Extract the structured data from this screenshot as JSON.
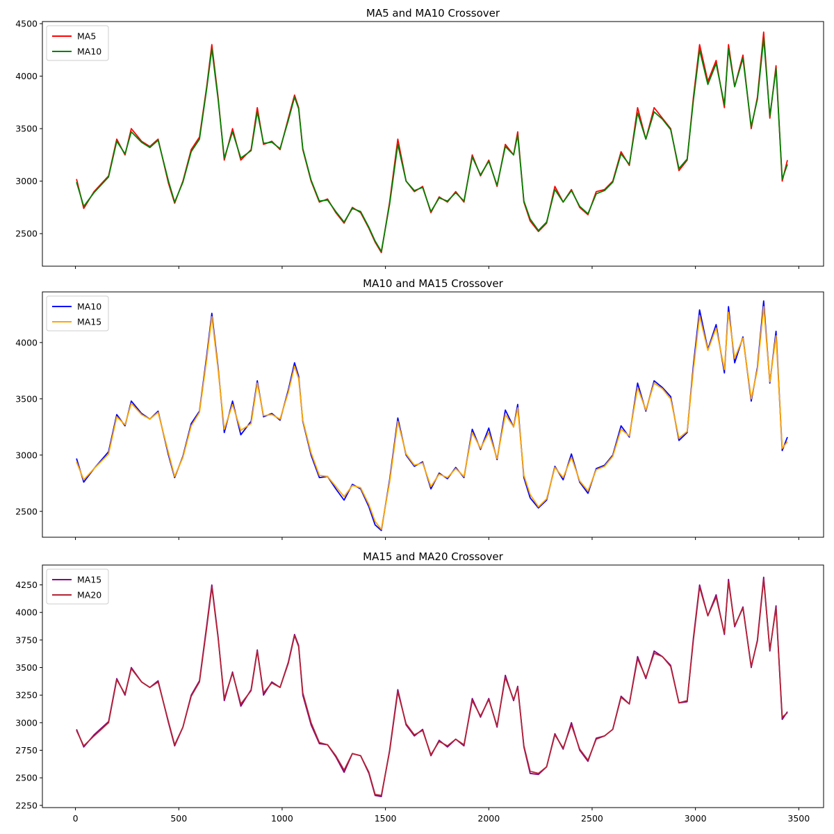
{
  "chart_data": [
    {
      "type": "line",
      "title": "MA5 and MA10 Crossover",
      "xlim": [
        -160,
        3620
      ],
      "ylim": [
        2190,
        4520
      ],
      "xticks": [
        0,
        500,
        1000,
        1500,
        2000,
        2500,
        3000,
        3500
      ],
      "xtick_labels_visible": false,
      "yticks": [
        2500,
        3000,
        3500,
        4000,
        4500
      ],
      "legend_position": "upper left",
      "x": [
        5,
        40,
        90,
        160,
        200,
        240,
        270,
        320,
        360,
        400,
        450,
        480,
        520,
        560,
        600,
        635,
        660,
        690,
        720,
        760,
        800,
        850,
        880,
        910,
        950,
        990,
        1030,
        1060,
        1080,
        1100,
        1140,
        1180,
        1220,
        1260,
        1300,
        1340,
        1380,
        1420,
        1450,
        1480,
        1520,
        1560,
        1600,
        1640,
        1680,
        1720,
        1760,
        1800,
        1840,
        1880,
        1920,
        1960,
        2000,
        2040,
        2080,
        2120,
        2140,
        2170,
        2200,
        2240,
        2280,
        2320,
        2360,
        2400,
        2440,
        2480,
        2520,
        2560,
        2600,
        2640,
        2680,
        2720,
        2760,
        2800,
        2840,
        2880,
        2920,
        2960,
        2990,
        3020,
        3060,
        3100,
        3140,
        3160,
        3190,
        3230,
        3270,
        3300,
        3330,
        3360,
        3390,
        3420,
        3445
      ],
      "series": [
        {
          "name": "MA5",
          "color": "#ff0000",
          "values": [
            3020,
            2740,
            2900,
            3050,
            3400,
            3250,
            3500,
            3380,
            3330,
            3400,
            2980,
            2790,
            3000,
            3300,
            3420,
            3900,
            4300,
            3800,
            3200,
            3500,
            3200,
            3300,
            3700,
            3350,
            3380,
            3300,
            3600,
            3820,
            3700,
            3300,
            3000,
            2800,
            2830,
            2700,
            2600,
            2750,
            2700,
            2550,
            2420,
            2320,
            2800,
            3400,
            3000,
            2900,
            2950,
            2700,
            2850,
            2800,
            2900,
            2800,
            3250,
            3050,
            3200,
            2950,
            3350,
            3250,
            3470,
            2800,
            2620,
            2520,
            2600,
            2950,
            2800,
            2920,
            2750,
            2680,
            2900,
            2920,
            3000,
            3280,
            3150,
            3700,
            3400,
            3700,
            3600,
            3500,
            3100,
            3200,
            3800,
            4300,
            3950,
            4150,
            3700,
            4300,
            3900,
            4200,
            3500,
            3800,
            4420,
            3600,
            4100,
            3000,
            3200
          ]
        },
        {
          "name": "MA10",
          "color": "#008000",
          "values": [
            2990,
            2760,
            2890,
            3040,
            3380,
            3260,
            3470,
            3370,
            3320,
            3390,
            3000,
            2800,
            2990,
            3280,
            3400,
            3880,
            4260,
            3780,
            3220,
            3470,
            3220,
            3290,
            3660,
            3360,
            3370,
            3310,
            3580,
            3800,
            3690,
            3310,
            3010,
            2810,
            2820,
            2710,
            2610,
            2740,
            2710,
            2560,
            2430,
            2330,
            2780,
            3350,
            3000,
            2910,
            2940,
            2710,
            2840,
            2810,
            2890,
            2810,
            3230,
            3060,
            3190,
            2960,
            3330,
            3250,
            3440,
            2810,
            2640,
            2530,
            2610,
            2920,
            2800,
            2910,
            2760,
            2690,
            2880,
            2910,
            2990,
            3260,
            3160,
            3650,
            3400,
            3660,
            3590,
            3490,
            3120,
            3210,
            3770,
            4250,
            3920,
            4120,
            3730,
            4260,
            3900,
            4170,
            3520,
            3780,
            4360,
            3620,
            4070,
            3020,
            3160
          ]
        }
      ]
    },
    {
      "type": "line",
      "title": "MA10 and MA15 Crossover",
      "xlim": [
        -160,
        3620
      ],
      "ylim": [
        2270,
        4450
      ],
      "xticks": [
        0,
        500,
        1000,
        1500,
        2000,
        2500,
        3000,
        3500
      ],
      "xtick_labels_visible": false,
      "yticks": [
        2500,
        3000,
        3500,
        4000
      ],
      "legend_position": "upper left",
      "x": [
        5,
        40,
        90,
        160,
        200,
        240,
        270,
        320,
        360,
        400,
        450,
        480,
        520,
        560,
        600,
        635,
        660,
        690,
        720,
        760,
        800,
        850,
        880,
        910,
        950,
        990,
        1030,
        1060,
        1080,
        1100,
        1140,
        1180,
        1220,
        1260,
        1300,
        1340,
        1380,
        1420,
        1450,
        1480,
        1520,
        1560,
        1600,
        1640,
        1680,
        1720,
        1760,
        1800,
        1840,
        1880,
        1920,
        1960,
        2000,
        2040,
        2080,
        2120,
        2140,
        2170,
        2200,
        2240,
        2280,
        2320,
        2360,
        2400,
        2440,
        2480,
        2520,
        2560,
        2600,
        2640,
        2680,
        2720,
        2760,
        2800,
        2840,
        2880,
        2920,
        2960,
        2990,
        3020,
        3060,
        3100,
        3140,
        3160,
        3190,
        3230,
        3270,
        3300,
        3330,
        3360,
        3390,
        3420,
        3445
      ],
      "series": [
        {
          "name": "MA10",
          "color": "#0000ff",
          "values": [
            2970,
            2760,
            2880,
            3030,
            3360,
            3260,
            3480,
            3370,
            3320,
            3390,
            3000,
            2800,
            2990,
            3280,
            3390,
            3880,
            4260,
            3780,
            3200,
            3480,
            3180,
            3300,
            3660,
            3340,
            3370,
            3310,
            3580,
            3820,
            3700,
            3300,
            3000,
            2800,
            2810,
            2700,
            2600,
            2740,
            2700,
            2540,
            2380,
            2330,
            2780,
            3330,
            3000,
            2900,
            2940,
            2700,
            2840,
            2790,
            2890,
            2800,
            3230,
            3050,
            3240,
            2960,
            3400,
            3250,
            3450,
            2800,
            2620,
            2530,
            2600,
            2900,
            2780,
            3010,
            2760,
            2660,
            2880,
            2910,
            3000,
            3260,
            3160,
            3640,
            3390,
            3660,
            3600,
            3520,
            3130,
            3200,
            3800,
            4290,
            3940,
            4160,
            3730,
            4320,
            3820,
            4050,
            3480,
            3780,
            4370,
            3640,
            4100,
            3040,
            3160
          ]
        },
        {
          "name": "MA15",
          "color": "#ffa500",
          "values": [
            2940,
            2780,
            2880,
            3010,
            3340,
            3270,
            3460,
            3360,
            3320,
            3380,
            3020,
            2810,
            2980,
            3260,
            3380,
            3850,
            4230,
            3760,
            3230,
            3450,
            3220,
            3280,
            3640,
            3350,
            3360,
            3320,
            3560,
            3790,
            3680,
            3310,
            3020,
            2820,
            2810,
            2720,
            2630,
            2730,
            2710,
            2560,
            2410,
            2340,
            2760,
            3300,
            3010,
            2910,
            2930,
            2720,
            2830,
            2800,
            2880,
            2810,
            3200,
            3060,
            3200,
            2970,
            3360,
            3250,
            3420,
            2820,
            2650,
            2540,
            2610,
            2890,
            2800,
            2980,
            2770,
            2680,
            2870,
            2900,
            2990,
            3230,
            3170,
            3600,
            3400,
            3640,
            3590,
            3500,
            3150,
            3210,
            3760,
            4240,
            3930,
            4130,
            3760,
            4270,
            3860,
            4040,
            3500,
            3760,
            4320,
            3650,
            4060,
            3060,
            3120
          ]
        }
      ]
    },
    {
      "type": "line",
      "title": "MA15 and MA20 Crossover",
      "xlim": [
        -160,
        3620
      ],
      "ylim": [
        2230,
        4430
      ],
      "xticks": [
        0,
        500,
        1000,
        1500,
        2000,
        2500,
        3000,
        3500
      ],
      "xtick_labels_visible": true,
      "yticks": [
        2250,
        2500,
        2750,
        3000,
        3250,
        3500,
        3750,
        4000,
        4250
      ],
      "legend_position": "upper left",
      "x": [
        5,
        40,
        90,
        160,
        200,
        240,
        270,
        320,
        360,
        400,
        450,
        480,
        520,
        560,
        600,
        635,
        660,
        690,
        720,
        760,
        800,
        850,
        880,
        910,
        950,
        990,
        1030,
        1060,
        1080,
        1100,
        1140,
        1180,
        1220,
        1260,
        1300,
        1340,
        1380,
        1420,
        1450,
        1480,
        1520,
        1560,
        1600,
        1640,
        1680,
        1720,
        1760,
        1800,
        1840,
        1880,
        1920,
        1960,
        2000,
        2040,
        2080,
        2120,
        2140,
        2170,
        2200,
        2240,
        2280,
        2320,
        2360,
        2400,
        2440,
        2480,
        2520,
        2560,
        2600,
        2640,
        2680,
        2720,
        2760,
        2800,
        2840,
        2880,
        2920,
        2960,
        2990,
        3020,
        3060,
        3100,
        3140,
        3160,
        3190,
        3230,
        3270,
        3300,
        3330,
        3360,
        3390,
        3420,
        3445
      ],
      "series": [
        {
          "name": "MA15",
          "color": "#800080",
          "values": [
            2940,
            2780,
            2890,
            3010,
            3400,
            3250,
            3500,
            3370,
            3320,
            3380,
            3000,
            2790,
            2960,
            3250,
            3380,
            3880,
            4250,
            3780,
            3200,
            3460,
            3150,
            3300,
            3660,
            3250,
            3370,
            3320,
            3550,
            3800,
            3700,
            3250,
            2980,
            2810,
            2800,
            2690,
            2550,
            2720,
            2700,
            2540,
            2340,
            2330,
            2750,
            3300,
            2980,
            2880,
            2940,
            2700,
            2840,
            2780,
            2850,
            2790,
            3220,
            3050,
            3220,
            2960,
            3430,
            3200,
            3330,
            2780,
            2540,
            2530,
            2600,
            2900,
            2760,
            3000,
            2750,
            2650,
            2860,
            2880,
            2940,
            3240,
            3170,
            3600,
            3400,
            3650,
            3600,
            3520,
            3180,
            3190,
            3770,
            4250,
            3970,
            4160,
            3800,
            4300,
            3870,
            4050,
            3500,
            3750,
            4320,
            3650,
            4060,
            3030,
            3100
          ]
        },
        {
          "name": "MA20",
          "color": "#b22234",
          "values": [
            2930,
            2790,
            2880,
            3000,
            3390,
            3260,
            3490,
            3370,
            3320,
            3370,
            3010,
            2800,
            2960,
            3240,
            3370,
            3860,
            4230,
            3770,
            3220,
            3450,
            3170,
            3290,
            3650,
            3270,
            3360,
            3320,
            3540,
            3790,
            3690,
            3270,
            3000,
            2820,
            2800,
            2700,
            2570,
            2720,
            2700,
            2550,
            2350,
            2340,
            2740,
            3280,
            2990,
            2890,
            2930,
            2710,
            2830,
            2790,
            2850,
            2800,
            3200,
            3060,
            3210,
            2970,
            3410,
            3210,
            3320,
            2790,
            2560,
            2540,
            2600,
            2890,
            2770,
            2980,
            2760,
            2660,
            2850,
            2880,
            2940,
            3230,
            3170,
            3580,
            3410,
            3630,
            3600,
            3510,
            3180,
            3200,
            3750,
            4230,
            3970,
            4140,
            3810,
            4280,
            3880,
            4040,
            3510,
            3740,
            4300,
            3660,
            4040,
            3050,
            3090
          ]
        }
      ]
    }
  ]
}
